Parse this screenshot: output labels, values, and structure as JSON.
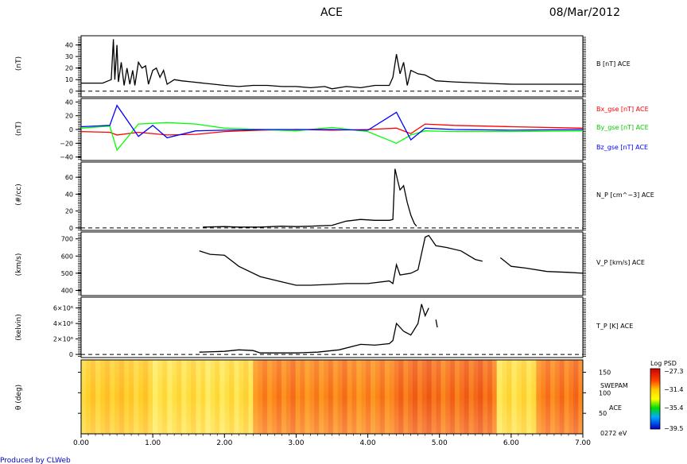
{
  "header": {
    "title": "ACE",
    "date": "08/Mar/2012"
  },
  "footer": {
    "credit": "Produced by CLWeb"
  },
  "chart_data": [
    {
      "type": "line",
      "ylabel": "(nT)",
      "ylim": [
        -5,
        48
      ],
      "yticks": [
        "40",
        "30",
        "20",
        "10",
        "0"
      ],
      "zero_line": true,
      "series": [
        {
          "name": "B [nT] ACE",
          "color": "#000000",
          "points": [
            [
              0,
              7
            ],
            [
              0.3,
              7
            ],
            [
              0.38,
              9
            ],
            [
              0.42,
              10
            ],
            [
              0.45,
              45
            ],
            [
              0.47,
              10
            ],
            [
              0.5,
              40
            ],
            [
              0.52,
              8
            ],
            [
              0.56,
              25
            ],
            [
              0.6,
              5
            ],
            [
              0.64,
              20
            ],
            [
              0.68,
              6
            ],
            [
              0.72,
              18
            ],
            [
              0.75,
              5
            ],
            [
              0.8,
              25
            ],
            [
              0.85,
              20
            ],
            [
              0.9,
              22
            ],
            [
              0.94,
              6
            ],
            [
              1.0,
              18
            ],
            [
              1.05,
              20
            ],
            [
              1.1,
              12
            ],
            [
              1.15,
              18
            ],
            [
              1.2,
              6
            ],
            [
              1.3,
              10
            ],
            [
              1.4,
              9
            ],
            [
              1.55,
              8
            ],
            [
              1.7,
              7
            ],
            [
              1.85,
              6
            ],
            [
              2.0,
              5
            ],
            [
              2.2,
              4
            ],
            [
              2.4,
              5
            ],
            [
              2.6,
              5
            ],
            [
              2.8,
              4
            ],
            [
              3.0,
              4
            ],
            [
              3.2,
              3
            ],
            [
              3.4,
              4
            ],
            [
              3.5,
              2
            ],
            [
              3.7,
              4
            ],
            [
              3.9,
              3
            ],
            [
              4.1,
              5
            ],
            [
              4.3,
              5
            ],
            [
              4.35,
              12
            ],
            [
              4.4,
              32
            ],
            [
              4.45,
              15
            ],
            [
              4.5,
              25
            ],
            [
              4.55,
              5
            ],
            [
              4.6,
              18
            ],
            [
              4.7,
              15
            ],
            [
              4.8,
              14
            ],
            [
              4.95,
              9
            ],
            [
              5.2,
              8
            ],
            [
              5.6,
              7
            ],
            [
              6.0,
              6
            ],
            [
              6.5,
              6
            ],
            [
              7.0,
              6
            ]
          ]
        }
      ]
    },
    {
      "type": "line",
      "ylabel": "(nT)",
      "ylim": [
        -45,
        45
      ],
      "yticks": [
        "40",
        "20",
        "0",
        "−20",
        "−40"
      ],
      "series": [
        {
          "name": "Bx_gse [nT] ACE",
          "color": "#ff0000",
          "points": [
            [
              0,
              -3
            ],
            [
              0.4,
              -4
            ],
            [
              0.5,
              -8
            ],
            [
              0.8,
              -4
            ],
            [
              1.2,
              -8
            ],
            [
              1.6,
              -7
            ],
            [
              2.0,
              -3
            ],
            [
              2.5,
              -1
            ],
            [
              3.0,
              0
            ],
            [
              3.5,
              -1
            ],
            [
              4.0,
              0
            ],
            [
              4.4,
              2
            ],
            [
              4.6,
              -6
            ],
            [
              4.8,
              8
            ],
            [
              5.2,
              6
            ],
            [
              6.0,
              4
            ],
            [
              7.0,
              2
            ]
          ]
        },
        {
          "name": "By_gse [nT] ACE",
          "color": "#00ff00",
          "points": [
            [
              0,
              2
            ],
            [
              0.4,
              5
            ],
            [
              0.5,
              -30
            ],
            [
              0.8,
              8
            ],
            [
              1.2,
              10
            ],
            [
              1.6,
              8
            ],
            [
              2.0,
              2
            ],
            [
              2.5,
              0
            ],
            [
              3.0,
              -2
            ],
            [
              3.5,
              3
            ],
            [
              4.0,
              -3
            ],
            [
              4.4,
              -20
            ],
            [
              4.6,
              -8
            ],
            [
              4.8,
              -2
            ],
            [
              5.2,
              -3
            ],
            [
              6.0,
              -3
            ],
            [
              7.0,
              -2
            ]
          ]
        },
        {
          "name": "Bz_gse [nT] ACE",
          "color": "#0000ff",
          "points": [
            [
              0,
              4
            ],
            [
              0.4,
              6
            ],
            [
              0.5,
              35
            ],
            [
              0.8,
              -10
            ],
            [
              1.0,
              6
            ],
            [
              1.2,
              -12
            ],
            [
              1.6,
              -2
            ],
            [
              2.0,
              -1
            ],
            [
              2.5,
              0
            ],
            [
              3.0,
              0
            ],
            [
              3.5,
              0
            ],
            [
              4.0,
              -1
            ],
            [
              4.4,
              25
            ],
            [
              4.6,
              -15
            ],
            [
              4.8,
              2
            ],
            [
              5.2,
              0
            ],
            [
              6.0,
              -1
            ],
            [
              7.0,
              0
            ]
          ]
        }
      ]
    },
    {
      "type": "line",
      "ylabel": "(#/cc)",
      "ylim": [
        -3,
        78
      ],
      "yticks": [
        "60",
        "40",
        "20",
        "0"
      ],
      "zero_line": true,
      "series": [
        {
          "name": "N_P [cm^−3] ACE",
          "color": "#000000",
          "points": [
            [
              1.7,
              1
            ],
            [
              2.0,
              1.5
            ],
            [
              2.2,
              1
            ],
            [
              2.5,
              1
            ],
            [
              2.8,
              2
            ],
            [
              3.0,
              1.5
            ],
            [
              3.2,
              2
            ],
            [
              3.5,
              3
            ],
            [
              3.7,
              8
            ],
            [
              3.9,
              10
            ],
            [
              4.1,
              9
            ],
            [
              4.3,
              9
            ],
            [
              4.35,
              10
            ],
            [
              4.38,
              70
            ],
            [
              4.42,
              55
            ],
            [
              4.45,
              45
            ],
            [
              4.5,
              50
            ],
            [
              4.55,
              30
            ],
            [
              4.6,
              15
            ],
            [
              4.65,
              5
            ],
            [
              4.68,
              2
            ]
          ]
        }
      ]
    },
    {
      "type": "line",
      "ylabel": "(km/s)",
      "ylim": [
        370,
        740
      ],
      "yticks": [
        "700",
        "600",
        "500",
        "400"
      ],
      "series": [
        {
          "name": "V_P [km/s] ACE",
          "color": "#000000",
          "points": [
            [
              1.65,
              630
            ],
            [
              1.8,
              610
            ],
            [
              2.0,
              605
            ],
            [
              2.2,
              540
            ],
            [
              2.5,
              480
            ],
            [
              2.8,
              450
            ],
            [
              3.0,
              430
            ],
            [
              3.2,
              430
            ],
            [
              3.5,
              435
            ],
            [
              3.7,
              440
            ],
            [
              4.0,
              440
            ],
            [
              4.3,
              455
            ],
            [
              4.35,
              440
            ],
            [
              4.4,
              550
            ],
            [
              4.45,
              490
            ],
            [
              4.6,
              500
            ],
            [
              4.7,
              520
            ],
            [
              4.8,
              710
            ],
            [
              4.85,
              720
            ],
            [
              4.95,
              660
            ],
            [
              5.1,
              650
            ],
            [
              5.3,
              630
            ],
            [
              5.5,
              580
            ],
            [
              5.6,
              570
            ],
            [
              null,
              null
            ],
            [
              5.85,
              590
            ],
            [
              6.0,
              540
            ],
            [
              6.2,
              530
            ],
            [
              6.5,
              510
            ],
            [
              6.8,
              505
            ],
            [
              7.0,
              500
            ]
          ]
        }
      ]
    },
    {
      "type": "line",
      "ylabel": "(kelvin)",
      "ylim": [
        -400000,
        7400000
      ],
      "yticks": [
        "6×10⁶",
        "4×10⁶",
        "2×10⁶",
        "0"
      ],
      "zero_line": true,
      "series": [
        {
          "name": "T_P [K] ACE",
          "color": "#000000",
          "points": [
            [
              1.65,
              300000
            ],
            [
              2.0,
              400000
            ],
            [
              2.2,
              600000
            ],
            [
              2.4,
              500000
            ],
            [
              2.5,
              200000
            ],
            [
              3.0,
              200000
            ],
            [
              3.3,
              300000
            ],
            [
              3.6,
              600000
            ],
            [
              3.9,
              1300000
            ],
            [
              4.1,
              1200000
            ],
            [
              4.3,
              1400000
            ],
            [
              4.35,
              1800000
            ],
            [
              4.4,
              4000000
            ],
            [
              4.5,
              3000000
            ],
            [
              4.6,
              2500000
            ],
            [
              4.7,
              4000000
            ],
            [
              4.75,
              6500000
            ],
            [
              4.8,
              5000000
            ],
            [
              4.85,
              6000000
            ],
            [
              null,
              null
            ],
            [
              4.95,
              4500000
            ],
            [
              4.97,
              3500000
            ]
          ]
        }
      ]
    },
    {
      "type": "heatmap",
      "ylabel": "θ (deg)",
      "yticks": [
        "150",
        "100",
        "50"
      ],
      "label_instrument": "SWEPAM",
      "label_source": "ACE",
      "label_energy": "0272 eV",
      "colorbar": {
        "title": "Log PSD",
        "ticks": [
          "−27.3",
          "−31.4",
          "−35.4",
          "−39.5"
        ]
      },
      "segments": [
        {
          "x0": 0.0,
          "x1": 1.0,
          "level": 0.28
        },
        {
          "x0": 1.0,
          "x1": 2.4,
          "level": 0.18
        },
        {
          "x0": 2.4,
          "x1": 4.3,
          "level": 0.55
        },
        {
          "x0": 4.3,
          "x1": 5.8,
          "level": 0.62
        },
        {
          "x0": 5.8,
          "x1": 6.35,
          "level": 0.2
        },
        {
          "x0": 6.35,
          "x1": 7.0,
          "level": 0.58
        }
      ]
    }
  ],
  "x_axis": {
    "ticks": [
      "0.00",
      "1.00",
      "2.00",
      "3.00",
      "4.00",
      "5.00",
      "6.00",
      "7.00"
    ],
    "range": [
      0,
      7
    ]
  }
}
